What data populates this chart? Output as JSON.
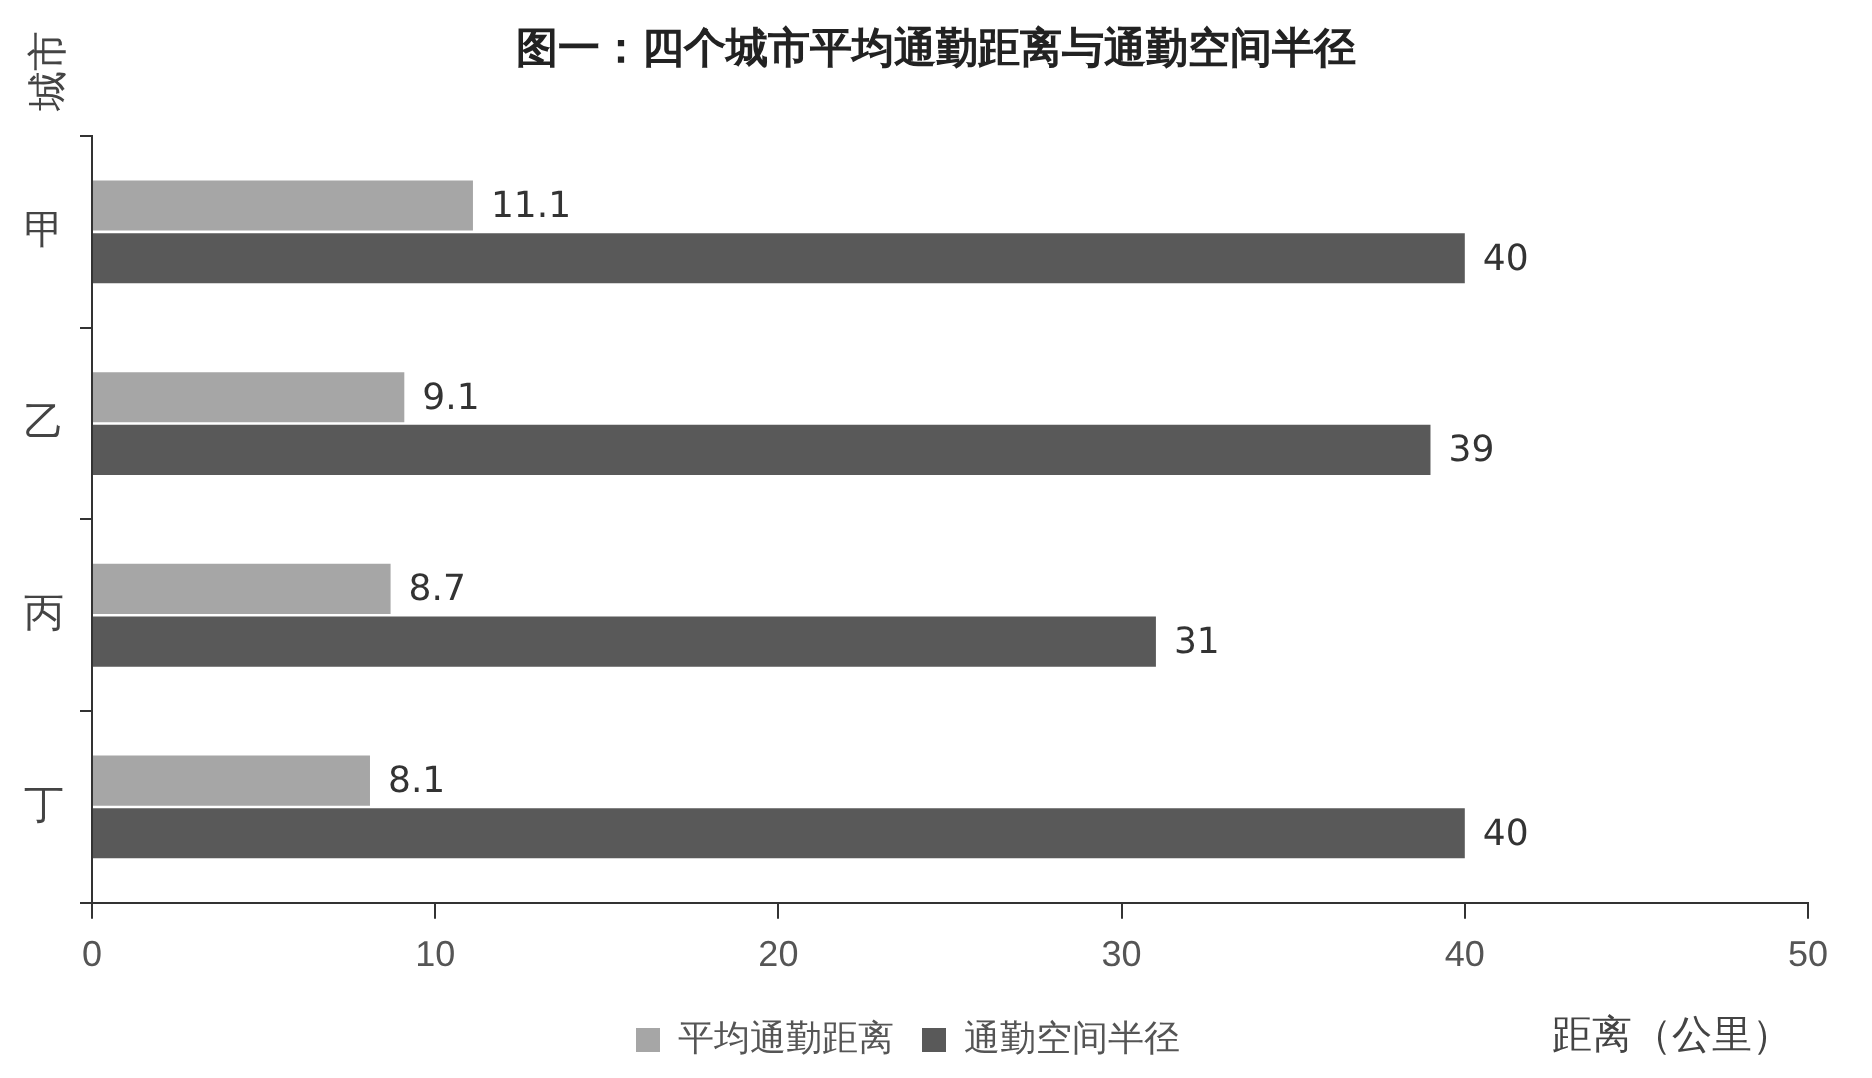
{
  "chart_data": {
    "type": "bar",
    "orientation": "horizontal",
    "title": "图一：四个城市平均通勤距离与通勤空间半径",
    "ylabel": "城市",
    "xlabel": "距离（公里）",
    "categories": [
      "甲",
      "乙",
      "丙",
      "丁"
    ],
    "series": [
      {
        "name": "平均通勤距离",
        "color": "#a6a6a6",
        "values": [
          11.1,
          9.1,
          8.7,
          8.1
        ]
      },
      {
        "name": "通勤空间半径",
        "color": "#595959",
        "values": [
          40,
          39,
          31,
          40
        ]
      }
    ],
    "xlim": [
      0,
      50
    ],
    "xticks": [
      0,
      10,
      20,
      30,
      40,
      50
    ],
    "grid": false,
    "legend": "bottom",
    "data_labels": true
  }
}
